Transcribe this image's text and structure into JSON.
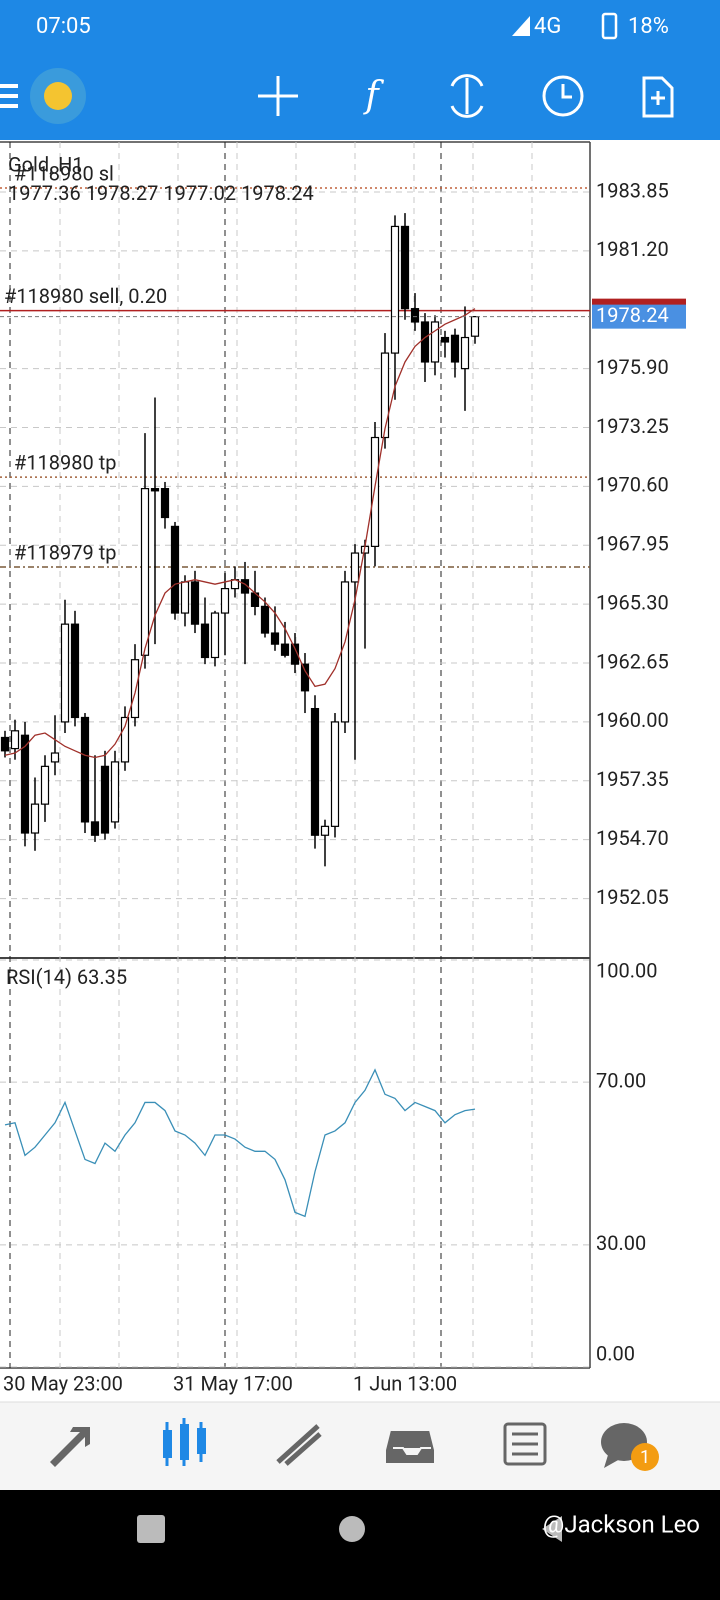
{
  "status_bar": {
    "time": "07:05",
    "network": "4G",
    "battery": "18%"
  },
  "chart_data": [
    {
      "type": "candlestick",
      "title": "Gold, H1",
      "categories": [
        "30 May 23:00",
        null,
        null,
        null,
        null,
        null,
        null,
        null,
        null,
        null,
        null,
        null,
        null,
        null,
        null,
        null,
        null,
        "31 May 17:00",
        null,
        null,
        null,
        null,
        null,
        null,
        null,
        null,
        null,
        null,
        null,
        null,
        null,
        null,
        null,
        null,
        null,
        "1 Jun 13:00",
        null,
        null,
        null,
        null,
        null,
        null,
        null,
        null,
        null,
        null,
        null,
        null
      ],
      "open": [
        1959.3,
        1958.8,
        1959.4,
        1955.0,
        1956.3,
        1958.2,
        1960.0,
        1964.4,
        1960.2,
        1955.5,
        1958.0,
        1955.5,
        1958.2,
        1960.2,
        1963.0,
        1970.5,
        1970.5,
        1968.8,
        1964.9,
        1966.3,
        1964.4,
        1962.9,
        1964.9,
        1966.0,
        1966.4,
        1965.8,
        1965.2,
        1964.0,
        1963.5,
        1963.5,
        1962.6,
        1960.6,
        1954.9,
        1955.3,
        1960.0,
        1966.3,
        1967.6,
        1967.9,
        1972.8,
        1976.6,
        1982.3,
        1978.6,
        1978.0,
        1976.2,
        1977.3,
        1977.4,
        1975.9,
        1977.36
      ],
      "high": [
        1959.6,
        1960.1,
        1960.0,
        1957.5,
        1958.5,
        1960.3,
        1965.5,
        1965.0,
        1960.4,
        1958.5,
        1958.7,
        1958.7,
        1960.7,
        1963.5,
        1973.0,
        1974.6,
        1970.8,
        1969.0,
        1966.6,
        1966.8,
        1965.6,
        1965.0,
        1966.7,
        1967.0,
        1967.2,
        1966.8,
        1965.6,
        1965.2,
        1964.5,
        1964.0,
        1963.1,
        1961.2,
        1955.6,
        1960.4,
        1966.8,
        1968.0,
        1968.2,
        1973.5,
        1977.5,
        1982.8,
        1982.9,
        1979.3,
        1978.4,
        1978.3,
        1977.6,
        1977.7,
        1978.7,
        1978.27
      ],
      "low": [
        1958.4,
        1958.3,
        1954.4,
        1954.2,
        1955.5,
        1957.6,
        1959.5,
        1959.8,
        1955.0,
        1954.6,
        1954.7,
        1955.2,
        1957.8,
        1959.8,
        1962.4,
        1963.5,
        1968.7,
        1964.6,
        1964.3,
        1964.0,
        1962.6,
        1962.5,
        1963.0,
        1965.6,
        1962.6,
        1964.8,
        1963.8,
        1963.2,
        1962.9,
        1962.2,
        1960.4,
        1954.3,
        1953.5,
        1954.8,
        1959.5,
        1958.3,
        1963.3,
        1967.0,
        1972.3,
        1974.5,
        1978.1,
        1977.6,
        1975.3,
        1975.6,
        1976.4,
        1975.5,
        1974.0,
        1977.02
      ],
      "close": [
        1958.7,
        1959.6,
        1955.0,
        1956.3,
        1958.0,
        1958.6,
        1964.4,
        1960.2,
        1955.5,
        1954.9,
        1955.0,
        1958.2,
        1960.2,
        1962.8,
        1970.5,
        1970.4,
        1969.2,
        1964.9,
        1966.3,
        1964.4,
        1962.9,
        1964.9,
        1966.0,
        1966.4,
        1965.8,
        1965.2,
        1964.0,
        1963.5,
        1963.0,
        1962.6,
        1961.4,
        1954.9,
        1955.3,
        1960.0,
        1966.3,
        1967.6,
        1967.9,
        1972.8,
        1976.6,
        1982.3,
        1978.6,
        1978.0,
        1976.2,
        1978.0,
        1977.1,
        1976.2,
        1977.3,
        1978.24
      ],
      "up_color": "#ffffff",
      "down_color": "#000000",
      "ma": {
        "color": "#a0302a",
        "values": [
          1958.5,
          1958.6,
          1958.9,
          1959.4,
          1959.5,
          1959.2,
          1958.9,
          1958.7,
          1958.5,
          1958.4,
          1958.5,
          1959.0,
          1959.8,
          1961.3,
          1963.3,
          1964.8,
          1965.8,
          1966.2,
          1966.3,
          1966.4,
          1966.3,
          1966.2,
          1966.3,
          1966.4,
          1966.2,
          1965.8,
          1965.4,
          1964.9,
          1964.2,
          1963.3,
          1962.3,
          1961.6,
          1961.7,
          1962.4,
          1963.6,
          1965.5,
          1967.9,
          1970.6,
          1973.2,
          1975.1,
          1976.2,
          1976.9,
          1977.3,
          1977.6,
          1977.9,
          1978.1,
          1978.3,
          1978.6
        ]
      },
      "levels": [
        {
          "label": "#118980 sl",
          "value": 1984.03,
          "color": "#c0603a",
          "dash": "2 3"
        },
        {
          "label": "#118980 sell, 0.20",
          "value": 1978.51,
          "color": "#b02020",
          "dash": "none"
        },
        {
          "label": "#118980 tp",
          "value": 1971.02,
          "color": "#a0603a",
          "dash": "2 3"
        },
        {
          "label": "#118979 tp",
          "value": 1966.97,
          "color": "#7a5a3a",
          "dash": "6 3 2 3"
        }
      ],
      "price_tag_color": "#4a90e2",
      "ylim": [
        1949.42,
        1986.1
      ],
      "yticks": [
        1983.85,
        {
          "value": 1981.2,
          "label": "1981.20"
        },
        {
          "value": 1975.9,
          "label": "1975.90"
        },
        1973.25,
        {
          "value": 1970.6,
          "label": "1970.60"
        },
        1967.95,
        {
          "value": 1965.3,
          "label": "1965.30"
        },
        1962.65,
        {
          "value": 1960,
          "label": "1960.00"
        },
        1957.35,
        {
          "value": 1954.7,
          "label": "1954.70"
        },
        1952.05
      ],
      "grid": true
    },
    {
      "type": "line",
      "title": "RSI(14)",
      "series": [
        {
          "name": "RSI(14)",
          "color": "#3a8fb7",
          "values": [
            59.5,
            60,
            52,
            54,
            57,
            60,
            65,
            58,
            51,
            50,
            55,
            53,
            57,
            60,
            65,
            65,
            63,
            58,
            57,
            55,
            52,
            57,
            57,
            56,
            54,
            53,
            53,
            51,
            46,
            38,
            37,
            48,
            57,
            58,
            60,
            65,
            68,
            73,
            67,
            66,
            63,
            65,
            64,
            63,
            60,
            62,
            63,
            63.35
          ]
        }
      ],
      "ylim": [
        0,
        100
      ],
      "yticks": [
        {
          "value": 100,
          "label": "100.00"
        },
        {
          "value": 70,
          "label": "70.00"
        },
        {
          "value": 30,
          "label": "30.00"
        },
        {
          "value": 0,
          "label": "0.00"
        }
      ],
      "grid": true
    }
  ],
  "nav": {
    "badge": "1"
  },
  "watermark": "@Jackson Leo"
}
